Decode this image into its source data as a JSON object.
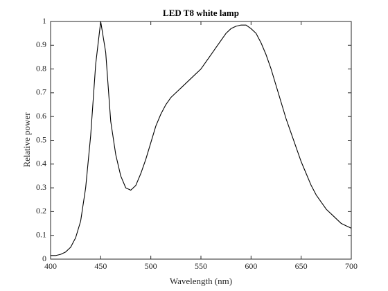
{
  "chart_data": {
    "type": "line",
    "title": "LED T8 white lamp",
    "x_label": "Wavelength (nm)",
    "y_label": "Relative power",
    "x": [
      400,
      405,
      410,
      415,
      420,
      425,
      430,
      435,
      440,
      445,
      450,
      455,
      460,
      465,
      470,
      475,
      480,
      485,
      490,
      495,
      500,
      505,
      510,
      515,
      520,
      525,
      530,
      535,
      540,
      545,
      550,
      555,
      560,
      565,
      570,
      575,
      580,
      585,
      590,
      595,
      600,
      605,
      610,
      615,
      620,
      625,
      630,
      635,
      640,
      645,
      650,
      655,
      660,
      665,
      670,
      675,
      680,
      685,
      690,
      695,
      700
    ],
    "series": [
      {
        "name": "LED T8 white lamp",
        "color": "#000000",
        "values": [
          0.015,
          0.015,
          0.02,
          0.03,
          0.05,
          0.09,
          0.16,
          0.3,
          0.52,
          0.82,
          1.0,
          0.87,
          0.58,
          0.44,
          0.35,
          0.3,
          0.29,
          0.31,
          0.36,
          0.42,
          0.49,
          0.56,
          0.61,
          0.65,
          0.68,
          0.7,
          0.72,
          0.74,
          0.76,
          0.78,
          0.8,
          0.83,
          0.86,
          0.89,
          0.92,
          0.95,
          0.97,
          0.98,
          0.985,
          0.985,
          0.97,
          0.95,
          0.91,
          0.86,
          0.8,
          0.73,
          0.66,
          0.59,
          0.53,
          0.47,
          0.41,
          0.36,
          0.31,
          0.27,
          0.24,
          0.21,
          0.19,
          0.17,
          0.15,
          0.14,
          0.13
        ]
      }
    ],
    "xlim": [
      400,
      700
    ],
    "xticks": [
      400,
      450,
      500,
      550,
      600,
      650,
      700
    ],
    "ylim": [
      0,
      1
    ],
    "yticks": [
      0,
      0.1,
      0.2,
      0.3,
      0.4,
      0.5,
      0.6,
      0.7,
      0.8,
      0.9,
      1
    ],
    "grid": false
  }
}
